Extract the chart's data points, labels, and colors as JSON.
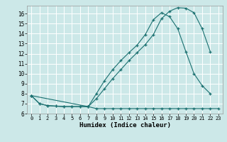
{
  "bg_color": "#cce8e8",
  "grid_color": "#ffffff",
  "line_color": "#1a7070",
  "xlabel": "Humidex (Indice chaleur)",
  "xlim": [
    -0.5,
    23.5
  ],
  "ylim": [
    6.0,
    16.8
  ],
  "yticks": [
    6,
    7,
    8,
    9,
    10,
    11,
    12,
    13,
    14,
    15,
    16
  ],
  "xticks": [
    0,
    1,
    2,
    3,
    4,
    5,
    6,
    7,
    8,
    9,
    10,
    11,
    12,
    13,
    14,
    15,
    16,
    17,
    18,
    19,
    20,
    21,
    22,
    23
  ],
  "series1_x": [
    0,
    1,
    2,
    3,
    4,
    5,
    6,
    7,
    8,
    9,
    10,
    11,
    12,
    13,
    14,
    15,
    16,
    17,
    18,
    19,
    20,
    21,
    22,
    23
  ],
  "series1_y": [
    7.8,
    7.0,
    6.8,
    6.75,
    6.7,
    6.7,
    6.7,
    6.7,
    6.5,
    6.5,
    6.5,
    6.5,
    6.5,
    6.5,
    6.5,
    6.5,
    6.5,
    6.5,
    6.5,
    6.5,
    6.5,
    6.5,
    6.5,
    6.5
  ],
  "series2_x": [
    0,
    1,
    2,
    3,
    4,
    5,
    6,
    7,
    8,
    9,
    10,
    11,
    12,
    13,
    14,
    15,
    16,
    17,
    18,
    19,
    20,
    21,
    22
  ],
  "series2_y": [
    7.8,
    7.0,
    6.8,
    6.75,
    6.7,
    6.7,
    6.7,
    6.7,
    8.0,
    9.3,
    10.4,
    11.3,
    12.1,
    12.85,
    13.9,
    15.4,
    16.1,
    15.7,
    14.5,
    12.2,
    10.0,
    8.8,
    8.0
  ],
  "series3_x": [
    0,
    7,
    8,
    9,
    10,
    11,
    12,
    13,
    14,
    15,
    16,
    17,
    18,
    19,
    20,
    21,
    22
  ],
  "series3_y": [
    7.8,
    6.7,
    7.5,
    8.5,
    9.5,
    10.4,
    11.3,
    12.1,
    12.9,
    13.9,
    15.5,
    16.25,
    16.6,
    16.55,
    16.1,
    14.5,
    12.2
  ]
}
